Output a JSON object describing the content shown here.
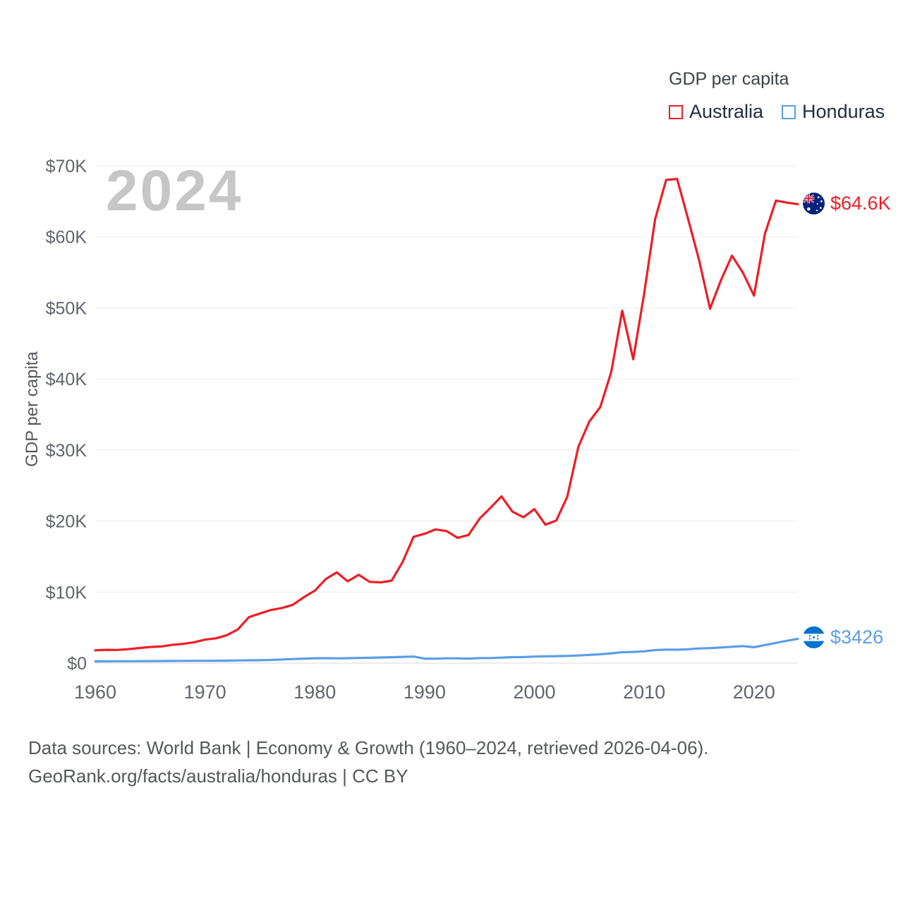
{
  "watermark": "2024",
  "legend": {
    "title": "GDP per capita",
    "items": [
      {
        "label": "Australia",
        "color": "#ee1d25"
      },
      {
        "label": "Honduras",
        "color": "#5b9de8"
      }
    ]
  },
  "axes": {
    "y_label": "GDP per capita"
  },
  "end_labels": {
    "australia": {
      "value": "$64.6K",
      "flag": "australia-flag"
    },
    "honduras": {
      "value": "$3426",
      "flag": "honduras-flag"
    }
  },
  "footer": {
    "line1": "Data sources: World Bank | Economy & Growth (1960–2024, retrieved 2026-04-06).",
    "line2": "GeoRank.org/facts/australia/honduras | CC BY"
  },
  "colors": {
    "australia": "#ee1d25",
    "honduras": "#5b9de8",
    "gridline": "#ececec",
    "zero_line": "#d9d9d9",
    "tick_text": "#61656b",
    "watermark": "#c6c6c8"
  },
  "chart_data": {
    "type": "line",
    "title": "GDP per capita",
    "xlabel": "",
    "ylabel": "GDP per capita",
    "ylim": [
      0,
      70000
    ],
    "grid": "horizontal",
    "legend_position": "top-right",
    "xticks": [
      1960,
      1970,
      1980,
      1990,
      2000,
      2010,
      2020
    ],
    "yticks": [
      {
        "value": 0,
        "label": "$0"
      },
      {
        "value": 10000,
        "label": "$10K"
      },
      {
        "value": 20000,
        "label": "$20K"
      },
      {
        "value": 30000,
        "label": "$30K"
      },
      {
        "value": 40000,
        "label": "$40K"
      },
      {
        "value": 50000,
        "label": "$50K"
      },
      {
        "value": 60000,
        "label": "$60K"
      },
      {
        "value": 70000,
        "label": "$70K"
      }
    ],
    "x": [
      1960,
      1961,
      1962,
      1963,
      1964,
      1965,
      1966,
      1967,
      1968,
      1969,
      1970,
      1971,
      1972,
      1973,
      1974,
      1975,
      1976,
      1977,
      1978,
      1979,
      1980,
      1981,
      1982,
      1983,
      1984,
      1985,
      1986,
      1987,
      1988,
      1989,
      1990,
      1991,
      1992,
      1993,
      1994,
      1995,
      1996,
      1997,
      1998,
      1999,
      2000,
      2001,
      2002,
      2003,
      2004,
      2005,
      2006,
      2007,
      2008,
      2009,
      2010,
      2011,
      2012,
      2013,
      2014,
      2015,
      2016,
      2017,
      2018,
      2019,
      2020,
      2021,
      2022,
      2023,
      2024
    ],
    "series": [
      {
        "name": "Australia",
        "color": "#ee1d25",
        "end_label": "$64.6K",
        "values": [
          1810,
          1877,
          1852,
          1964,
          2128,
          2278,
          2343,
          2576,
          2715,
          2937,
          3305,
          3495,
          3945,
          4764,
          6475,
          6993,
          7475,
          7764,
          8216,
          9282,
          10194,
          11834,
          12767,
          11518,
          12432,
          11437,
          11366,
          11603,
          14254,
          17786,
          18211,
          18822,
          18585,
          17634,
          18046,
          20320,
          21861,
          23469,
          21318,
          20533,
          21679,
          19491,
          20082,
          23447,
          30431,
          33999,
          36045,
          40961,
          49602,
          42772,
          52022,
          62518,
          68012,
          68150,
          62511,
          56756,
          49876,
          53934,
          57355,
          54941,
          51720,
          60443,
          65100,
          64820,
          64600
        ]
      },
      {
        "name": "Honduras",
        "color": "#5b9de8",
        "end_label": "$3426",
        "values": [
          252,
          256,
          264,
          268,
          277,
          290,
          300,
          306,
          318,
          325,
          331,
          337,
          348,
          376,
          393,
          405,
          447,
          520,
          575,
          636,
          684,
          696,
          678,
          695,
          723,
          755,
          790,
          832,
          888,
          922,
          634,
          630,
          672,
          671,
          639,
          712,
          711,
          775,
          842,
          853,
          920,
          960,
          982,
          1008,
          1070,
          1159,
          1253,
          1376,
          1540,
          1576,
          1672,
          1839,
          1902,
          1884,
          1955,
          2063,
          2118,
          2205,
          2308,
          2399,
          2232,
          2548,
          2848,
          3152,
          3426
        ]
      }
    ]
  }
}
